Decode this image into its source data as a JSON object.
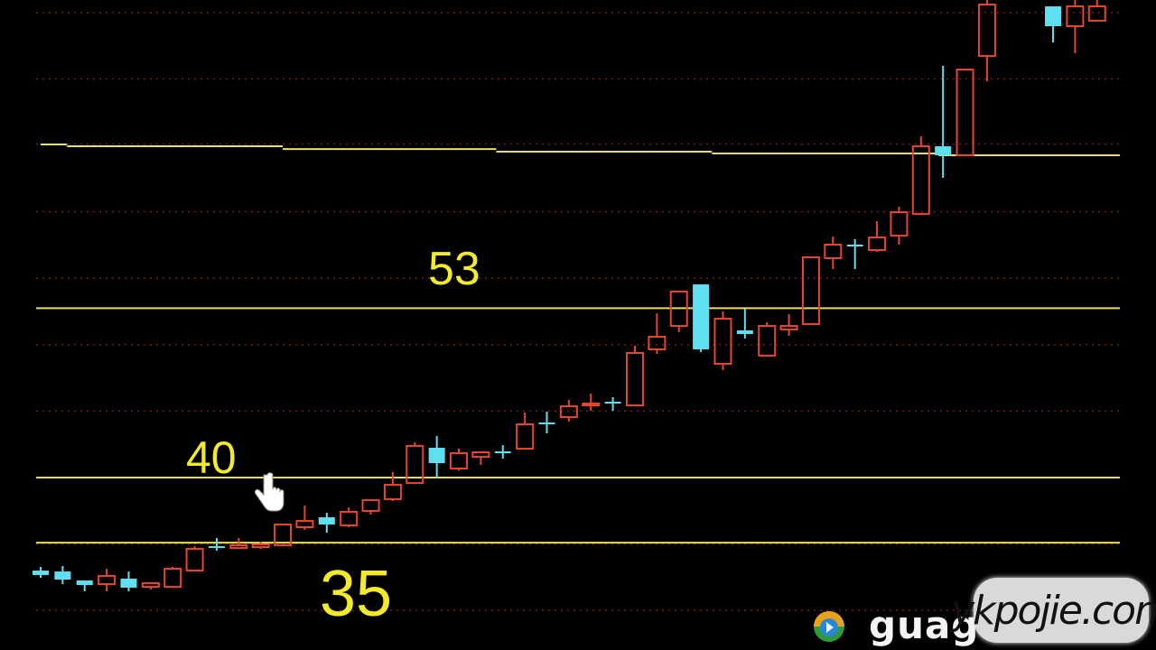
{
  "chart_data": {
    "type": "candlestick",
    "title": "",
    "xlabel": "",
    "ylabel": "",
    "ylim": [
      29.3,
      76.7
    ],
    "grid": true,
    "colors": {
      "up": "#e8452e",
      "down": "#5fe0f0",
      "level_line": "#e6e05a",
      "grid": "#7a1a12",
      "background": "#000000",
      "label": "#f2ea2a"
    },
    "gridlines": [
      29.8,
      34.9,
      40,
      45.1,
      50.2,
      55.3,
      60.4,
      65.6,
      70.6,
      75.7
    ],
    "levels": [
      {
        "value": 53,
        "label": "53"
      },
      {
        "value": 40,
        "label": "40"
      },
      {
        "value": 35,
        "label": "35"
      }
    ],
    "upper_line": [
      {
        "from": 0,
        "to": 1.2,
        "value": 65.57
      },
      {
        "from": 1.2,
        "to": 11,
        "value": 65.43
      },
      {
        "from": 11,
        "to": 20.7,
        "value": 65.22
      },
      {
        "from": 20.7,
        "to": 30.5,
        "value": 65.02
      },
      {
        "from": 30.5,
        "to": 40.8,
        "value": 64.88
      },
      {
        "from": 40.8,
        "to": 49.5,
        "value": 64.74
      }
    ],
    "candles": [
      {
        "o": 32.86,
        "h": 33.14,
        "l": 32.31,
        "c": 32.52
      },
      {
        "o": 32.79,
        "h": 33.21,
        "l": 31.82,
        "c": 32.17
      },
      {
        "o": 32.1,
        "h": 32.1,
        "l": 31.27,
        "c": 31.75
      },
      {
        "o": 31.82,
        "h": 33.0,
        "l": 31.27,
        "c": 32.45
      },
      {
        "o": 32.24,
        "h": 32.79,
        "l": 31.27,
        "c": 31.55
      },
      {
        "o": 31.61,
        "h": 31.89,
        "l": 31.41,
        "c": 31.89
      },
      {
        "o": 31.61,
        "h": 33.14,
        "l": 31.61,
        "c": 33.0
      },
      {
        "o": 32.86,
        "h": 34.73,
        "l": 32.86,
        "c": 34.53
      },
      {
        "o": 34.73,
        "h": 35.36,
        "l": 34.39,
        "c": 34.59
      },
      {
        "o": 34.59,
        "h": 35.36,
        "l": 34.59,
        "c": 34.8
      },
      {
        "o": 34.66,
        "h": 35.08,
        "l": 34.53,
        "c": 34.87
      },
      {
        "o": 34.8,
        "h": 36.4,
        "l": 34.73,
        "c": 36.4
      },
      {
        "o": 36.19,
        "h": 37.85,
        "l": 35.98,
        "c": 36.67
      },
      {
        "o": 36.95,
        "h": 37.3,
        "l": 35.77,
        "c": 36.4
      },
      {
        "o": 36.33,
        "h": 37.71,
        "l": 36.19,
        "c": 37.37
      },
      {
        "o": 37.44,
        "h": 38.27,
        "l": 37.16,
        "c": 38.27
      },
      {
        "o": 38.34,
        "h": 40.42,
        "l": 38.2,
        "c": 39.45
      },
      {
        "o": 39.58,
        "h": 42.7,
        "l": 39.58,
        "c": 42.43
      },
      {
        "o": 42.29,
        "h": 43.19,
        "l": 40.0,
        "c": 41.11
      },
      {
        "o": 40.69,
        "h": 42.22,
        "l": 40.55,
        "c": 41.87
      },
      {
        "o": 41.59,
        "h": 42.01,
        "l": 40.97,
        "c": 41.94
      },
      {
        "o": 42.01,
        "h": 42.49,
        "l": 41.46,
        "c": 41.94
      },
      {
        "o": 42.22,
        "h": 44.99,
        "l": 42.15,
        "c": 44.09
      },
      {
        "o": 44.23,
        "h": 45.06,
        "l": 43.4,
        "c": 44.16
      },
      {
        "o": 44.64,
        "h": 45.96,
        "l": 44.3,
        "c": 45.47
      },
      {
        "o": 45.54,
        "h": 46.44,
        "l": 45.13,
        "c": 45.68
      },
      {
        "o": 45.82,
        "h": 46.17,
        "l": 45.13,
        "c": 45.75
      },
      {
        "o": 45.54,
        "h": 50.12,
        "l": 45.54,
        "c": 49.56
      },
      {
        "o": 49.84,
        "h": 52.61,
        "l": 49.49,
        "c": 50.81
      },
      {
        "o": 51.64,
        "h": 54.28,
        "l": 51.16,
        "c": 54.28
      },
      {
        "o": 54.83,
        "h": 54.83,
        "l": 49.63,
        "c": 49.84
      },
      {
        "o": 48.73,
        "h": 52.75,
        "l": 48.25,
        "c": 52.2
      },
      {
        "o": 51.3,
        "h": 52.96,
        "l": 50.67,
        "c": 51.02
      },
      {
        "o": 49.36,
        "h": 51.92,
        "l": 49.36,
        "c": 51.64
      },
      {
        "o": 51.37,
        "h": 52.54,
        "l": 50.88,
        "c": 51.64
      },
      {
        "o": 51.78,
        "h": 56.91,
        "l": 51.78,
        "c": 56.91
      },
      {
        "o": 56.84,
        "h": 58.5,
        "l": 56.01,
        "c": 57.88
      },
      {
        "o": 57.88,
        "h": 58.3,
        "l": 56.01,
        "c": 57.81
      },
      {
        "o": 57.46,
        "h": 59.68,
        "l": 57.33,
        "c": 58.43
      },
      {
        "o": 58.57,
        "h": 60.79,
        "l": 57.88,
        "c": 60.37
      },
      {
        "o": 60.24,
        "h": 66.2,
        "l": 60.24,
        "c": 65.43
      },
      {
        "o": 65.43,
        "h": 71.6,
        "l": 63.01,
        "c": 64.74
      },
      {
        "o": 64.74,
        "h": 71.32,
        "l": 64.74,
        "c": 71.32
      },
      {
        "o": 72.36,
        "h": 76.66,
        "l": 70.42,
        "c": 76.31
      },
      null,
      null,
      {
        "o": 76.17,
        "h": 76.17,
        "l": 73.4,
        "c": 74.65
      },
      {
        "o": 74.65,
        "h": 76.66,
        "l": 72.57,
        "c": 76.17
      },
      {
        "o": 75.07,
        "h": 76.66,
        "l": 75.07,
        "c": 76.17
      }
    ]
  },
  "watermarks": {
    "site_partial": "guag",
    "overlay": "ykpojie.com",
    "logo_icon": "play-disc-logo-icon"
  },
  "cursor_icon": "hand-pointer-icon"
}
